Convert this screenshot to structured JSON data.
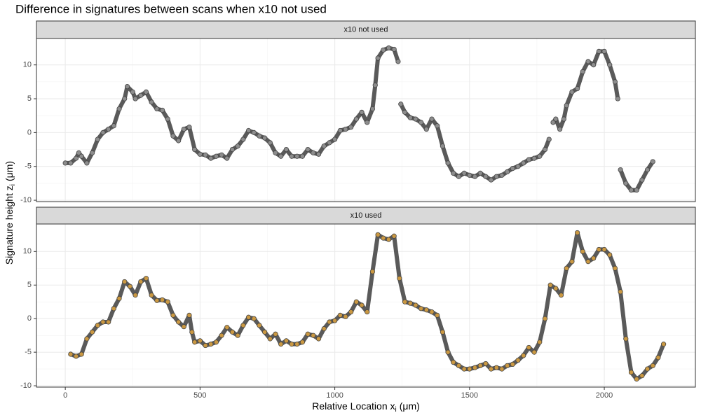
{
  "figure": {
    "title": "Difference in signatures between scans when x10 not used",
    "x_label": {
      "text": "Relative Location x",
      "subscript": "i",
      "unit": "(μm)"
    },
    "y_label": {
      "text": "Signature height z",
      "subscript": "i",
      "unit": "(μm)"
    }
  },
  "chart_data": [
    {
      "type": "scatter",
      "title": "x10 not used",
      "color": "#9a9a9a",
      "grid": true,
      "show_xticks": false,
      "xlim": [
        -107,
        2338
      ],
      "ylim": [
        -10.2,
        13.9
      ],
      "xticks": [
        0,
        500,
        1000,
        1500,
        2000
      ],
      "yticks": [
        -10,
        -5,
        0,
        5,
        10
      ],
      "x": [
        0,
        20,
        40,
        50,
        60,
        80,
        100,
        120,
        140,
        160,
        180,
        200,
        220,
        230,
        250,
        260,
        280,
        300,
        320,
        340,
        360,
        380,
        400,
        420,
        440,
        460,
        480,
        500,
        520,
        540,
        560,
        580,
        600,
        620,
        640,
        660,
        680,
        700,
        720,
        740,
        760,
        780,
        800,
        820,
        840,
        860,
        880,
        900,
        920,
        940,
        960,
        980,
        1000,
        1020,
        1040,
        1060,
        1080,
        1100,
        1120,
        1140,
        1150,
        1160,
        1180,
        1200,
        1220,
        1235,
        1240,
        1245,
        1260,
        1280,
        1300,
        1320,
        1340,
        1360,
        1380,
        1400,
        1420,
        1440,
        1460,
        1480,
        1500,
        1520,
        1540,
        1560,
        1580,
        1600,
        1620,
        1640,
        1660,
        1680,
        1700,
        1720,
        1740,
        1760,
        1780,
        1795,
        1805,
        1810,
        1820,
        1835,
        1850,
        1860,
        1880,
        1900,
        1920,
        1940,
        1960,
        1980,
        2000,
        2020,
        2040,
        2050,
        2055,
        2060,
        2080,
        2100,
        2120,
        2140,
        2160,
        2180
      ],
      "values": [
        -4.5,
        -4.5,
        -3.8,
        -3,
        -3.5,
        -4.5,
        -3,
        -1,
        0,
        0.5,
        1,
        3.5,
        5,
        6.8,
        6,
        5,
        5.5,
        6,
        4.5,
        3.5,
        3.3,
        2,
        -0.5,
        -1.2,
        0.5,
        0.8,
        -2.5,
        -3.2,
        -3.3,
        -3.8,
        -3.5,
        -3.3,
        -3.8,
        -2.5,
        -2,
        -1,
        0.3,
        0,
        -0.5,
        -0.8,
        -1.5,
        -3,
        -3.5,
        -2.5,
        -3.5,
        -3.5,
        -3.5,
        -2.5,
        -3,
        -3.2,
        -2,
        -1.5,
        -1,
        0.3,
        0.5,
        0.8,
        2,
        3,
        1.5,
        3.5,
        7,
        11,
        12.2,
        12.5,
        12.3,
        10.5,
        null,
        4.2,
        3,
        2.2,
        2,
        1.5,
        0.5,
        2,
        1,
        -2,
        -4.5,
        -6,
        -6.5,
        -6,
        -6.3,
        -6.5,
        -6,
        -6.5,
        -7,
        -6.5,
        -6.3,
        -5.8,
        -5.3,
        -5,
        -4.5,
        -4,
        -3.8,
        -3.5,
        -2.5,
        -1,
        null,
        1.5,
        2,
        0.5,
        2,
        4,
        6,
        6.5,
        9,
        10.5,
        10,
        12,
        12,
        10,
        7.5,
        5,
        null,
        -5.5,
        -7.5,
        -8.5,
        -8.5,
        -7,
        -5.5,
        -4.3
      ]
    },
    {
      "type": "scatter",
      "title": "x10 used",
      "color": "#e6a83c",
      "grid": true,
      "show_xticks": true,
      "xlim": [
        -107,
        2338
      ],
      "ylim": [
        -10.2,
        14.1
      ],
      "xticks": [
        0,
        500,
        1000,
        1500,
        2000
      ],
      "yticks": [
        -10,
        -5,
        0,
        5,
        10
      ],
      "x": [
        20,
        40,
        60,
        80,
        100,
        120,
        140,
        160,
        180,
        200,
        220,
        240,
        260,
        280,
        300,
        320,
        340,
        360,
        380,
        400,
        420,
        440,
        460,
        470,
        480,
        500,
        520,
        540,
        560,
        580,
        600,
        620,
        640,
        660,
        680,
        700,
        720,
        740,
        760,
        780,
        800,
        820,
        840,
        860,
        880,
        900,
        920,
        940,
        960,
        980,
        1000,
        1020,
        1040,
        1060,
        1080,
        1100,
        1120,
        1140,
        1160,
        1180,
        1200,
        1220,
        1240,
        1260,
        1280,
        1300,
        1320,
        1340,
        1360,
        1380,
        1400,
        1420,
        1440,
        1460,
        1480,
        1500,
        1520,
        1540,
        1560,
        1580,
        1600,
        1620,
        1640,
        1660,
        1680,
        1700,
        1720,
        1740,
        1760,
        1780,
        1800,
        1820,
        1840,
        1860,
        1880,
        1900,
        1920,
        1940,
        1960,
        1980,
        2000,
        2020,
        2040,
        2060,
        2080,
        2100,
        2120,
        2140,
        2160,
        2180,
        2200,
        2220
      ],
      "values": [
        -5.3,
        -5.6,
        -5.3,
        -3,
        -2,
        -1,
        -0.5,
        -0.5,
        1.5,
        3,
        5.5,
        4.8,
        3.5,
        5.5,
        6,
        3.5,
        2.7,
        2.8,
        2.5,
        0.5,
        -0.5,
        -1.2,
        0.5,
        -2,
        -3.5,
        -3.3,
        -4,
        -3.8,
        -3.5,
        -2.5,
        -1.3,
        -2,
        -2.5,
        -1,
        0.2,
        0,
        -1,
        -2,
        -3,
        -2.3,
        -3.8,
        -3.3,
        -3.8,
        -3.8,
        -3.5,
        -2.3,
        -2.5,
        -3,
        -1.5,
        -0.5,
        -0.3,
        0.5,
        0.3,
        1,
        2.5,
        2,
        1,
        7,
        12.5,
        12,
        11.8,
        12.3,
        6,
        2.5,
        2.3,
        2,
        1.5,
        1.3,
        1,
        0.5,
        -2,
        -5,
        -6.5,
        -7,
        -7.5,
        -7.5,
        -7.3,
        -7,
        -6.7,
        -7.5,
        -7.3,
        -7.5,
        -7,
        -6.8,
        -6.2,
        -5.5,
        -4.3,
        -5,
        -3.5,
        0,
        5,
        4.5,
        3.5,
        7.5,
        8.5,
        12.8,
        10,
        8.5,
        9,
        10.3,
        10.3,
        9.5,
        7.5,
        4,
        -3,
        -8,
        -9,
        -8.5,
        -7.5,
        -7,
        -5.8,
        -3.8
      ]
    }
  ]
}
